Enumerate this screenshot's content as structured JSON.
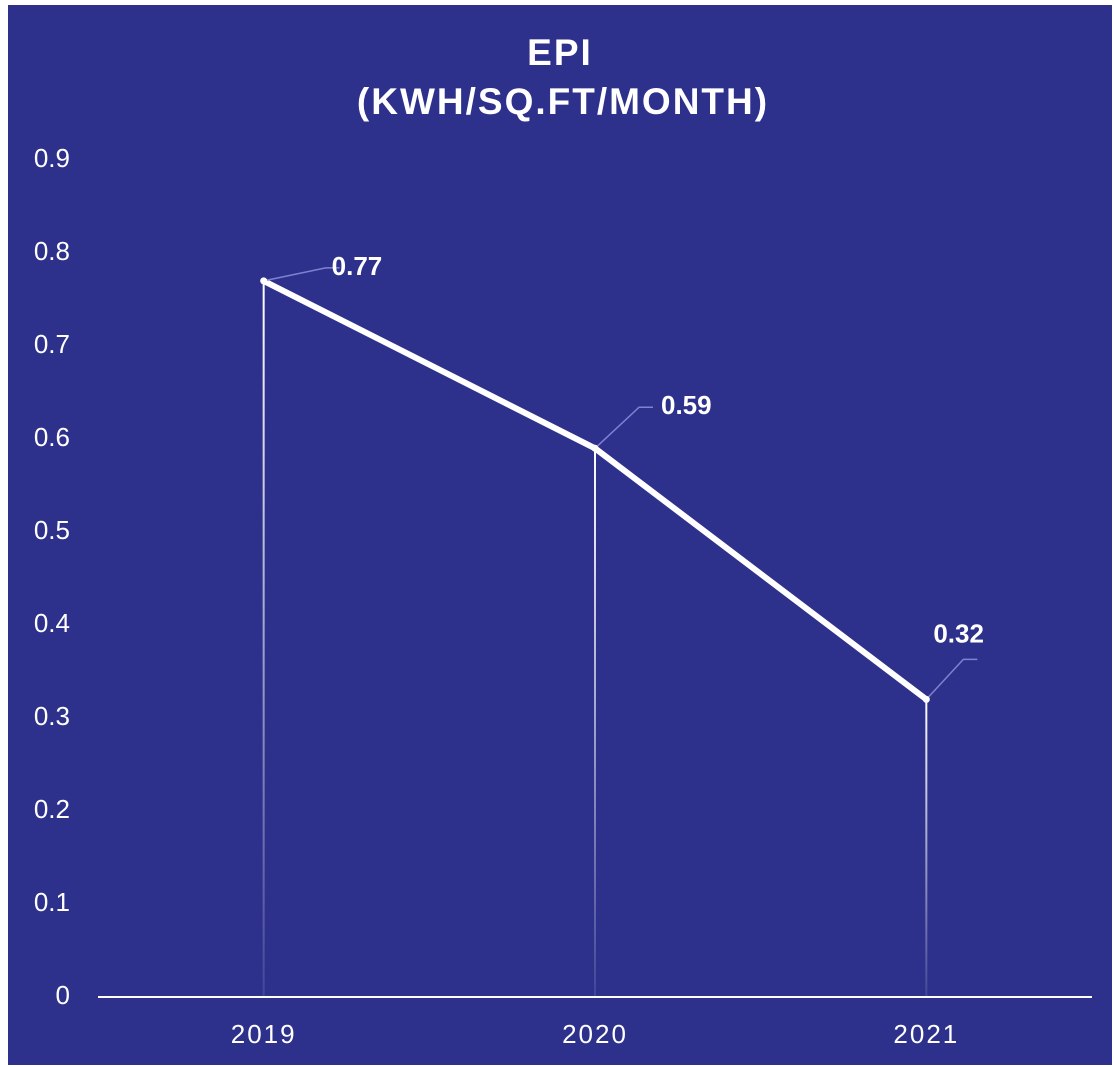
{
  "chart_data": {
    "type": "line",
    "title": [
      "EPI",
      "(KWH/SQ.FT/MONTH)"
    ],
    "categories": [
      "2019",
      "2020",
      "2021"
    ],
    "series": [
      {
        "color": "#ffffff",
        "values": [
          0.77,
          0.59,
          0.32
        ]
      }
    ],
    "ylim": [
      0,
      0.9
    ],
    "yticks": [
      0,
      0.1,
      0.2,
      0.3,
      0.4,
      0.5,
      0.6,
      0.7,
      0.8,
      0.9
    ],
    "grid": false
  }
}
